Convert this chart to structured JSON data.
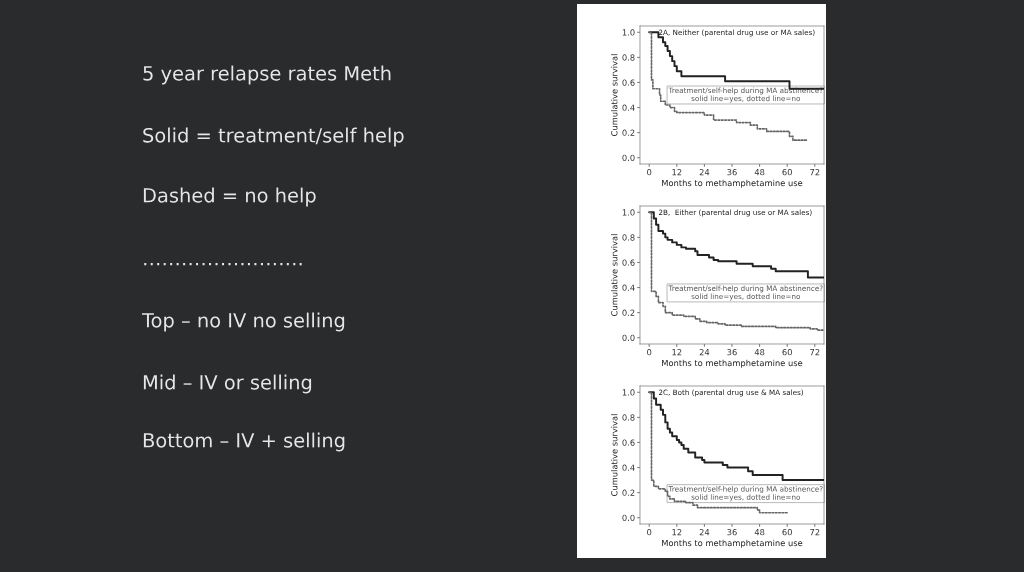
{
  "chart_data": [
    {
      "type": "other",
      "annotations": [
        "5 year relapse rates Meth",
        "Solid = treatment/self help",
        "Dashed = no help",
        "…………………….",
        "Top – no IV no selling",
        "Mid – IV or selling",
        "Bottom – IV + selling"
      ]
    },
    {
      "type": "step",
      "title": "2A, Neither (parental drug use or MA sales)",
      "xlabel": "Months to methamphetamine use",
      "ylabel": "Cumulative survival",
      "xlim": [
        -4,
        76
      ],
      "ylim": [
        -0.05,
        1.05
      ],
      "xticks": [
        0,
        12,
        24,
        36,
        48,
        60,
        72
      ],
      "yticks": [
        {
          "value": 0,
          "label": "0.0"
        },
        {
          "value": 0.2,
          "label": "0.2"
        },
        {
          "value": 0.4,
          "label": "0.4"
        },
        {
          "value": 0.6,
          "label": "0.6"
        },
        {
          "value": 0.8,
          "label": "0.8"
        },
        {
          "value": 1,
          "label": "1.0"
        }
      ],
      "annotations": [
        "Treatment/self-help during MA abstinence?\nsolid line=yes, dotted line=no"
      ],
      "series": [
        {
          "color": "#222222",
          "line_style": "solid",
          "x": [
            0,
            4,
            6,
            7,
            8,
            9,
            10,
            11,
            12,
            14,
            33,
            61,
            76
          ],
          "values": [
            1.0,
            0.96,
            0.92,
            0.89,
            0.85,
            0.81,
            0.77,
            0.73,
            0.69,
            0.65,
            0.61,
            0.55,
            0.55
          ]
        },
        {
          "color": "#666666",
          "line_style": "dotted",
          "x": [
            0,
            1,
            1.6,
            4.5,
            5,
            7,
            9,
            11,
            12,
            24,
            28,
            38,
            44,
            47,
            51,
            61,
            62.5,
            68.5
          ],
          "values": [
            1.0,
            0.62,
            0.55,
            0.5,
            0.45,
            0.42,
            0.4,
            0.37,
            0.36,
            0.34,
            0.3,
            0.28,
            0.26,
            0.23,
            0.21,
            0.17,
            0.14,
            0.14
          ]
        }
      ]
    },
    {
      "type": "step",
      "title": "2B,  Either (parental drug use or MA sales)",
      "xlabel": "Months to methamphetamine use",
      "ylabel": "Cumulative survival",
      "xlim": [
        -4,
        76
      ],
      "ylim": [
        -0.05,
        1.05
      ],
      "xticks": [
        0,
        12,
        24,
        36,
        48,
        60,
        72
      ],
      "yticks": [
        {
          "value": 0,
          "label": "0.0"
        },
        {
          "value": 0.2,
          "label": "0.2"
        },
        {
          "value": 0.4,
          "label": "0.4"
        },
        {
          "value": 0.6,
          "label": "0.6"
        },
        {
          "value": 0.8,
          "label": "0.8"
        },
        {
          "value": 1,
          "label": "1.0"
        }
      ],
      "annotations": [
        "Treatment/self-help during MA abstinence?\nsolid line=yes, dotted line=no"
      ],
      "series": [
        {
          "color": "#222222",
          "line_style": "solid",
          "x": [
            0,
            2,
            3,
            4,
            6,
            7,
            8,
            10,
            12,
            14,
            16,
            20,
            21,
            26,
            28,
            30,
            38,
            45,
            53,
            55,
            69,
            76
          ],
          "values": [
            1.0,
            0.95,
            0.9,
            0.85,
            0.83,
            0.8,
            0.78,
            0.76,
            0.74,
            0.72,
            0.71,
            0.69,
            0.66,
            0.64,
            0.62,
            0.61,
            0.59,
            0.57,
            0.55,
            0.53,
            0.48,
            0.48
          ]
        },
        {
          "color": "#666666",
          "line_style": "dotted",
          "x": [
            0,
            1,
            3,
            4,
            6,
            7,
            10,
            15,
            20,
            22,
            25,
            30,
            33,
            40,
            55,
            70,
            73,
            76
          ],
          "values": [
            1.0,
            0.37,
            0.33,
            0.28,
            0.25,
            0.2,
            0.18,
            0.17,
            0.15,
            0.13,
            0.12,
            0.11,
            0.1,
            0.09,
            0.08,
            0.07,
            0.06,
            0.06
          ]
        }
      ]
    },
    {
      "type": "step",
      "title": "2C, Both (parental drug use & MA sales)",
      "xlabel": "Months to methamphetamine use",
      "ylabel": "Cumulative survival",
      "xlim": [
        -4,
        76
      ],
      "ylim": [
        -0.05,
        1.05
      ],
      "xticks": [
        0,
        12,
        24,
        36,
        48,
        60,
        72
      ],
      "yticks": [
        {
          "value": 0,
          "label": "0.0"
        },
        {
          "value": 0.2,
          "label": "0.2"
        },
        {
          "value": 0.4,
          "label": "0.4"
        },
        {
          "value": 0.6,
          "label": "0.6"
        },
        {
          "value": 0.8,
          "label": "0.8"
        },
        {
          "value": 1,
          "label": "1.0"
        }
      ],
      "annotations": [
        "Treatment/self-help during MA abstinence?\nsolid line=yes, dotted line=no"
      ],
      "series": [
        {
          "color": "#222222",
          "line_style": "solid",
          "x": [
            0,
            2,
            3,
            5,
            6,
            7,
            8,
            9,
            10,
            12,
            13,
            14,
            15,
            17,
            20,
            23,
            24,
            32,
            34,
            43,
            45,
            58,
            76
          ],
          "values": [
            1.0,
            0.95,
            0.9,
            0.86,
            0.82,
            0.76,
            0.71,
            0.68,
            0.65,
            0.62,
            0.6,
            0.58,
            0.55,
            0.52,
            0.48,
            0.46,
            0.44,
            0.42,
            0.4,
            0.37,
            0.34,
            0.3,
            0.3
          ]
        },
        {
          "color": "#666666",
          "line_style": "dotted",
          "x": [
            0,
            1,
            2,
            4,
            7,
            8,
            9,
            11,
            16,
            19,
            21,
            47,
            48,
            60
          ],
          "values": [
            1.0,
            0.3,
            0.25,
            0.23,
            0.21,
            0.17,
            0.15,
            0.13,
            0.12,
            0.1,
            0.08,
            0.06,
            0.04,
            0.04
          ]
        }
      ]
    }
  ]
}
